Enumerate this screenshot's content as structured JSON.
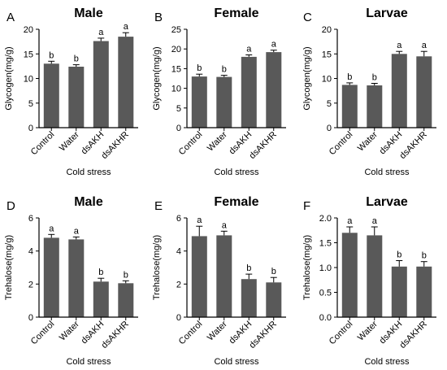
{
  "figure": {
    "bar_color": "#595959",
    "panels": [
      {
        "letter": "A",
        "chart_data": {
          "type": "bar",
          "title": "Male",
          "categories": [
            "Control",
            "Water",
            "dsAKH",
            "dsAKHR"
          ],
          "values": [
            13.0,
            12.4,
            17.6,
            18.5
          ],
          "errors": [
            0.5,
            0.4,
            0.6,
            0.8
          ],
          "significance": [
            "b",
            "b",
            "a",
            "a"
          ],
          "ylabel": "Glycogen(mg/g)",
          "xlabel": "Cold stress",
          "ylim": [
            0,
            20
          ],
          "yticks": [
            0,
            5,
            10,
            15,
            20
          ],
          "ytick_labels": [
            "0",
            "5",
            "10",
            "15",
            "20"
          ]
        }
      },
      {
        "letter": "B",
        "chart_data": {
          "type": "bar",
          "title": "Female",
          "categories": [
            "Control",
            "Water",
            "dsAKH",
            "dsAKHR"
          ],
          "values": [
            13.0,
            12.9,
            18.0,
            19.2
          ],
          "errors": [
            0.6,
            0.4,
            0.5,
            0.5
          ],
          "significance": [
            "b",
            "b",
            "a",
            "a"
          ],
          "ylabel": "Glycogen(mg/g)",
          "xlabel": "Cold stress",
          "ylim": [
            0,
            25
          ],
          "yticks": [
            0,
            5,
            10,
            15,
            20,
            25
          ],
          "ytick_labels": [
            "0",
            "5",
            "10",
            "15",
            "20",
            "25"
          ]
        }
      },
      {
        "letter": "C",
        "chart_data": {
          "type": "bar",
          "title": "Larvae",
          "categories": [
            "Control",
            "Water",
            "dsAKH",
            "dsAKHR"
          ],
          "values": [
            8.7,
            8.6,
            15.0,
            14.5
          ],
          "errors": [
            0.4,
            0.4,
            0.5,
            1.0
          ],
          "significance": [
            "b",
            "b",
            "a",
            "a"
          ],
          "ylabel": "Glycogen(mg/g)",
          "xlabel": "Cold stress",
          "ylim": [
            0,
            20
          ],
          "yticks": [
            0,
            5,
            10,
            15,
            20
          ],
          "ytick_labels": [
            "0",
            "5",
            "10",
            "15",
            "20"
          ]
        }
      },
      {
        "letter": "D",
        "chart_data": {
          "type": "bar",
          "title": "Male",
          "categories": [
            "Control",
            "Water",
            "dsAKH",
            "dsAKHR"
          ],
          "values": [
            4.8,
            4.7,
            2.15,
            2.05
          ],
          "errors": [
            0.2,
            0.15,
            0.2,
            0.15
          ],
          "significance": [
            "a",
            "a",
            "b",
            "b"
          ],
          "ylabel": "Trehalose(mg/g)",
          "xlabel": "Cold stress",
          "ylim": [
            0,
            6
          ],
          "yticks": [
            0,
            2,
            4,
            6
          ],
          "ytick_labels": [
            "0",
            "2",
            "4",
            "6"
          ]
        }
      },
      {
        "letter": "E",
        "chart_data": {
          "type": "bar",
          "title": "Female",
          "categories": [
            "Control",
            "Water",
            "dsAKH",
            "dsAKHR"
          ],
          "values": [
            4.9,
            4.95,
            2.3,
            2.1
          ],
          "errors": [
            0.6,
            0.25,
            0.3,
            0.3
          ],
          "significance": [
            "a",
            "a",
            "b",
            "b"
          ],
          "ylabel": "Trehalose(mg/g)",
          "xlabel": "Cold stress",
          "ylim": [
            0,
            6
          ],
          "yticks": [
            0,
            2,
            4,
            6
          ],
          "ytick_labels": [
            "0",
            "2",
            "4",
            "6"
          ]
        }
      },
      {
        "letter": "F",
        "chart_data": {
          "type": "bar",
          "title": "Larvae",
          "categories": [
            "Control",
            "Water",
            "dsAKH",
            "dsAKHR"
          ],
          "values": [
            1.7,
            1.65,
            1.02,
            1.02
          ],
          "errors": [
            0.12,
            0.17,
            0.12,
            0.1
          ],
          "significance": [
            "a",
            "a",
            "b",
            "b"
          ],
          "ylabel": "Trehalose(mg/g)",
          "xlabel": "Cold stress",
          "ylim": [
            0,
            2.0
          ],
          "yticks": [
            0,
            0.5,
            1.0,
            1.5,
            2.0
          ],
          "ytick_labels": [
            "0.0",
            "0.5",
            "1.0",
            "1.5",
            "2.0"
          ]
        }
      }
    ]
  }
}
